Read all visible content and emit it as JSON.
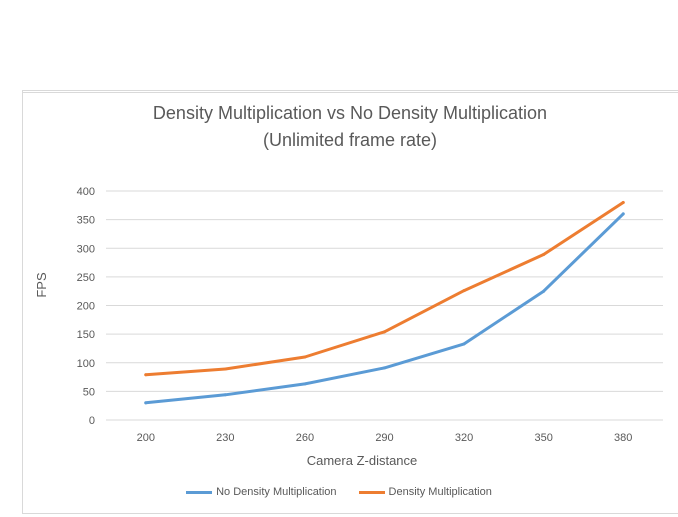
{
  "chart_data": {
    "type": "line",
    "title": "Density Multiplication vs No Density Multiplication",
    "subtitle": "(Unlimited frame rate)",
    "xlabel": "Camera Z-distance",
    "ylabel": "FPS",
    "categories": [
      "200",
      "230",
      "260",
      "290",
      "320",
      "350",
      "380"
    ],
    "ylim": [
      0,
      400
    ],
    "yticks": [
      0,
      50,
      100,
      150,
      200,
      250,
      300,
      350,
      400
    ],
    "grid": true,
    "legend_position": "bottom",
    "series": [
      {
        "name": "No Density Multiplication",
        "color": "#5b9bd5",
        "values": [
          30,
          44,
          63,
          91,
          133,
          225,
          360
        ]
      },
      {
        "name": "Density Multiplication",
        "color": "#ed7d31",
        "values": [
          79,
          89,
          110,
          154,
          226,
          289,
          380
        ]
      }
    ]
  }
}
